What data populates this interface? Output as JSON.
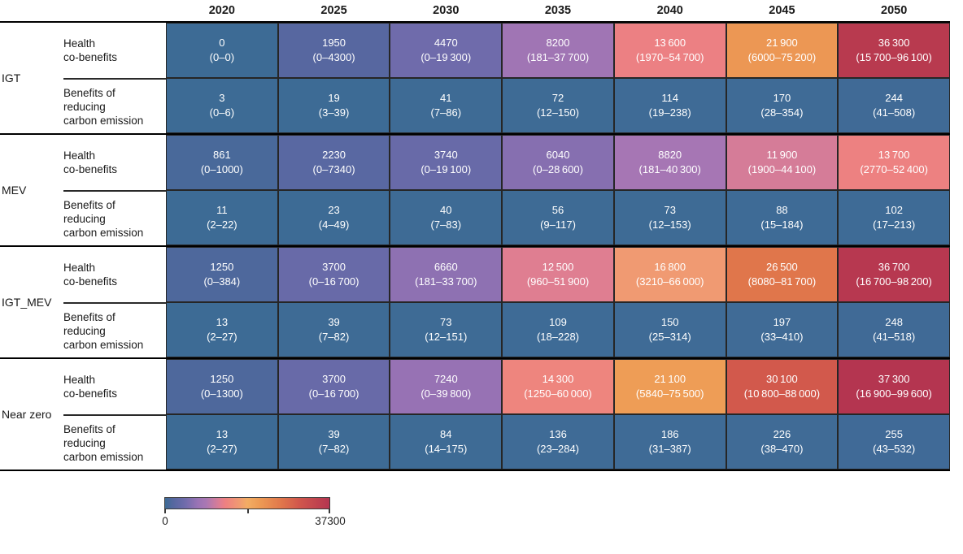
{
  "chart_data": {
    "type": "heatmap",
    "title": "",
    "columns": [
      "2020",
      "2025",
      "2030",
      "2035",
      "2040",
      "2045",
      "2050"
    ],
    "vmax": 37300,
    "colormap_stops": [
      [
        0.0,
        "#3d6b95"
      ],
      [
        0.05,
        "#5667a0"
      ],
      [
        0.12,
        "#6f6bab"
      ],
      [
        0.2,
        "#9a73b5"
      ],
      [
        0.25,
        "#aa77b3"
      ],
      [
        0.3,
        "#c97ba0"
      ],
      [
        0.34,
        "#e27e8f"
      ],
      [
        0.37,
        "#ee8180"
      ],
      [
        0.45,
        "#f09a72"
      ],
      [
        0.5,
        "#f3ad64"
      ],
      [
        0.57,
        "#ee9c55"
      ],
      [
        0.71,
        "#e0764b"
      ],
      [
        0.81,
        "#d2584c"
      ],
      [
        1.0,
        "#b43550"
      ]
    ],
    "legend": {
      "min_label": "0",
      "max_label": "37300"
    },
    "groups": [
      {
        "name": "IGT",
        "rows": [
          {
            "label": "Health co-benefits",
            "label_lines": [
              "Health",
              "co-benefits"
            ],
            "cells": [
              {
                "v": 0,
                "t": "0",
                "r": "(0–0)"
              },
              {
                "v": 1950,
                "t": "1950",
                "r": "(0–4300)"
              },
              {
                "v": 4470,
                "t": "4470",
                "r": "(0–19 300)"
              },
              {
                "v": 8200,
                "t": "8200",
                "r": "(181–37 700)"
              },
              {
                "v": 13600,
                "t": "13 600",
                "r": "(1970–54 700)"
              },
              {
                "v": 21900,
                "t": "21 900",
                "r": "(6000–75 200)"
              },
              {
                "v": 36300,
                "t": "36 300",
                "r": "(15 700–96 100)"
              }
            ]
          },
          {
            "label": "Benefits of reducing carbon emission",
            "label_lines": [
              "Benefits of",
              "reducing",
              "carbon emission"
            ],
            "cells": [
              {
                "v": 3,
                "t": "3",
                "r": "(0–6)"
              },
              {
                "v": 19,
                "t": "19",
                "r": "(3–39)"
              },
              {
                "v": 41,
                "t": "41",
                "r": "(7–86)"
              },
              {
                "v": 72,
                "t": "72",
                "r": "(12–150)"
              },
              {
                "v": 114,
                "t": "114",
                "r": "(19–238)"
              },
              {
                "v": 170,
                "t": "170",
                "r": "(28–354)"
              },
              {
                "v": 244,
                "t": "244",
                "r": "(41–508)"
              }
            ]
          }
        ]
      },
      {
        "name": "MEV",
        "rows": [
          {
            "label": "Health co-benefits",
            "label_lines": [
              "Health",
              "co-benefits"
            ],
            "cells": [
              {
                "v": 861,
                "t": "861",
                "r": "(0–1000)"
              },
              {
                "v": 2230,
                "t": "2230",
                "r": "(0–7340)"
              },
              {
                "v": 3740,
                "t": "3740",
                "r": "(0–19 100)"
              },
              {
                "v": 6040,
                "t": "6040",
                "r": "(0–28 600)"
              },
              {
                "v": 8820,
                "t": "8820",
                "r": "(181–40 300)"
              },
              {
                "v": 11900,
                "t": "11 900",
                "r": "(1900–44 100)"
              },
              {
                "v": 13700,
                "t": "13 700",
                "r": "(2770–52 400)"
              }
            ]
          },
          {
            "label": "Benefits of reducing carbon emission",
            "label_lines": [
              "Benefits of",
              "reducing",
              "carbon emission"
            ],
            "cells": [
              {
                "v": 11,
                "t": "11",
                "r": "(2–22)"
              },
              {
                "v": 23,
                "t": "23",
                "r": "(4–49)"
              },
              {
                "v": 40,
                "t": "40",
                "r": "(7–83)"
              },
              {
                "v": 56,
                "t": "56",
                "r": "(9–117)"
              },
              {
                "v": 73,
                "t": "73",
                "r": "(12–153)"
              },
              {
                "v": 88,
                "t": "88",
                "r": "(15–184)"
              },
              {
                "v": 102,
                "t": "102",
                "r": "(17–213)"
              }
            ]
          }
        ]
      },
      {
        "name": "IGT_MEV",
        "rows": [
          {
            "label": "Health co-benefits",
            "label_lines": [
              "Health",
              "co-benefits"
            ],
            "cells": [
              {
                "v": 1250,
                "t": "1250",
                "r": "(0–384)"
              },
              {
                "v": 3700,
                "t": "3700",
                "r": "(0–16 700)"
              },
              {
                "v": 6660,
                "t": "6660",
                "r": "(181–33 700)"
              },
              {
                "v": 12500,
                "t": "12 500",
                "r": "(960–51 900)"
              },
              {
                "v": 16800,
                "t": "16 800",
                "r": "(3210–66 000)"
              },
              {
                "v": 26500,
                "t": "26 500",
                "r": "(8080–81 700)"
              },
              {
                "v": 36700,
                "t": "36 700",
                "r": "(16 700–98 200)"
              }
            ]
          },
          {
            "label": "Benefits of reducing carbon emission",
            "label_lines": [
              "Benefits of",
              "reducing",
              "carbon emission"
            ],
            "cells": [
              {
                "v": 13,
                "t": "13",
                "r": "(2–27)"
              },
              {
                "v": 39,
                "t": "39",
                "r": "(7–82)"
              },
              {
                "v": 73,
                "t": "73",
                "r": "(12–151)"
              },
              {
                "v": 109,
                "t": "109",
                "r": "(18–228)"
              },
              {
                "v": 150,
                "t": "150",
                "r": "(25–314)"
              },
              {
                "v": 197,
                "t": "197",
                "r": "(33–410)"
              },
              {
                "v": 248,
                "t": "248",
                "r": "(41–518)"
              }
            ]
          }
        ]
      },
      {
        "name": "Near zero",
        "rows": [
          {
            "label": "Health co-benefits",
            "label_lines": [
              "Health",
              "co-benefits"
            ],
            "cells": [
              {
                "v": 1250,
                "t": "1250",
                "r": "(0–1300)"
              },
              {
                "v": 3700,
                "t": "3700",
                "r": "(0–16 700)"
              },
              {
                "v": 7240,
                "t": "7240",
                "r": "(0–39 800)"
              },
              {
                "v": 14300,
                "t": "14 300",
                "r": "(1250–60 000)"
              },
              {
                "v": 21100,
                "t": "21 100",
                "r": "(5840–75 500)"
              },
              {
                "v": 30100,
                "t": "30 100",
                "r": "(10 800–88 000)"
              },
              {
                "v": 37300,
                "t": "37 300",
                "r": "(16 900–99 600)"
              }
            ]
          },
          {
            "label": "Benefits of reducing carbon emission",
            "label_lines": [
              "Benefits of",
              "reducing",
              "carbon emission"
            ],
            "cells": [
              {
                "v": 13,
                "t": "13",
                "r": "(2–27)"
              },
              {
                "v": 39,
                "t": "39",
                "r": "(7–82)"
              },
              {
                "v": 84,
                "t": "84",
                "r": "(14–175)"
              },
              {
                "v": 136,
                "t": "136",
                "r": "(23–284)"
              },
              {
                "v": 186,
                "t": "186",
                "r": "(31–387)"
              },
              {
                "v": 226,
                "t": "226",
                "r": "(38–470)"
              },
              {
                "v": 255,
                "t": "255",
                "r": "(43–532)"
              }
            ]
          }
        ]
      }
    ]
  }
}
